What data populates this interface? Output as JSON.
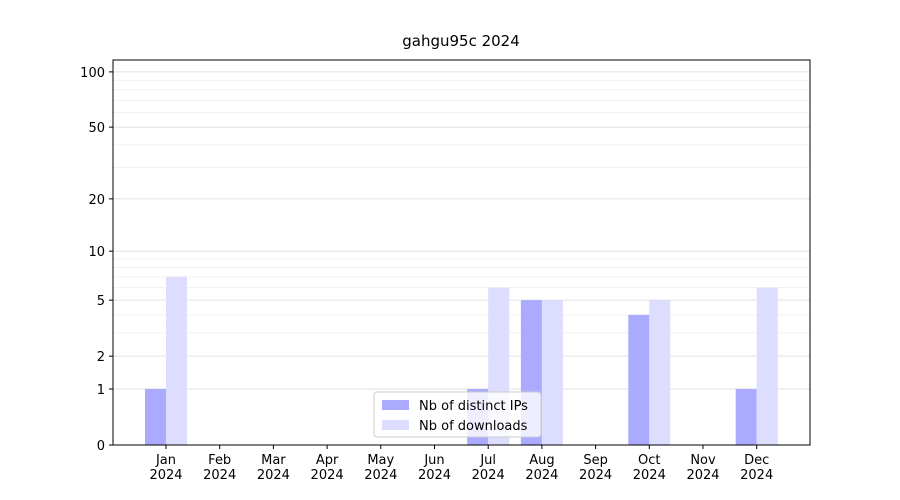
{
  "chart_data": {
    "type": "bar",
    "title": "gahgu95c 2024",
    "categories": [
      "Jan\n2024",
      "Feb\n2024",
      "Mar\n2024",
      "Apr\n2024",
      "May\n2024",
      "Jun\n2024",
      "Jul\n2024",
      "Aug\n2024",
      "Sep\n2024",
      "Oct\n2024",
      "Nov\n2024",
      "Dec\n2024"
    ],
    "series": [
      {
        "name": "Nb of distinct IPs",
        "color": "#aaaaff",
        "values": [
          1,
          0,
          0,
          0,
          0,
          0,
          1,
          5,
          0,
          4,
          0,
          1
        ]
      },
      {
        "name": "Nb of downloads",
        "color": "#ddddff",
        "values": [
          7,
          0,
          0,
          0,
          0,
          0,
          6,
          5,
          0,
          5,
          0,
          6
        ]
      }
    ],
    "yscale": "log1p",
    "ylim": [
      0,
      116
    ],
    "yticks": [
      0,
      1,
      2,
      5,
      10,
      20,
      50,
      100
    ],
    "yminorticks": [
      3,
      4,
      6,
      7,
      8,
      9,
      30,
      40,
      60,
      70,
      80,
      90
    ],
    "grid": true,
    "legend": "lower center"
  }
}
